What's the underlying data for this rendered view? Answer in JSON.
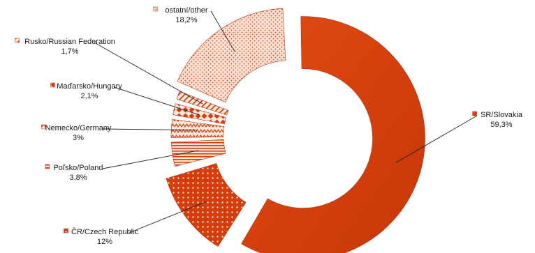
{
  "chart_data": {
    "type": "pie",
    "variant": "exploded doughnut",
    "title": "",
    "legend": "none",
    "colors": {
      "base": "#d63d0c",
      "light": "#fbe3d7",
      "edge": "#b5300a"
    },
    "categories": [
      "SR/Slovakia",
      "ČR/Czech Republic",
      "Poľsko/Poland",
      "Nemecko/Germany",
      "Maďarsko/Hungary",
      "Rusko/Russian Federation",
      "ostatní/other"
    ],
    "values": [
      59.3,
      12,
      3.8,
      3,
      2.1,
      1.7,
      18.2
    ],
    "value_labels": [
      "59,3%",
      "12%",
      "3,8%",
      "3%",
      "2,1%",
      "1,7%",
      "18,2%"
    ],
    "patterns": [
      "solid",
      "dots",
      "horizontal-stripes",
      "zigzag",
      "diamonds",
      "stripes",
      "dots-light"
    ]
  }
}
